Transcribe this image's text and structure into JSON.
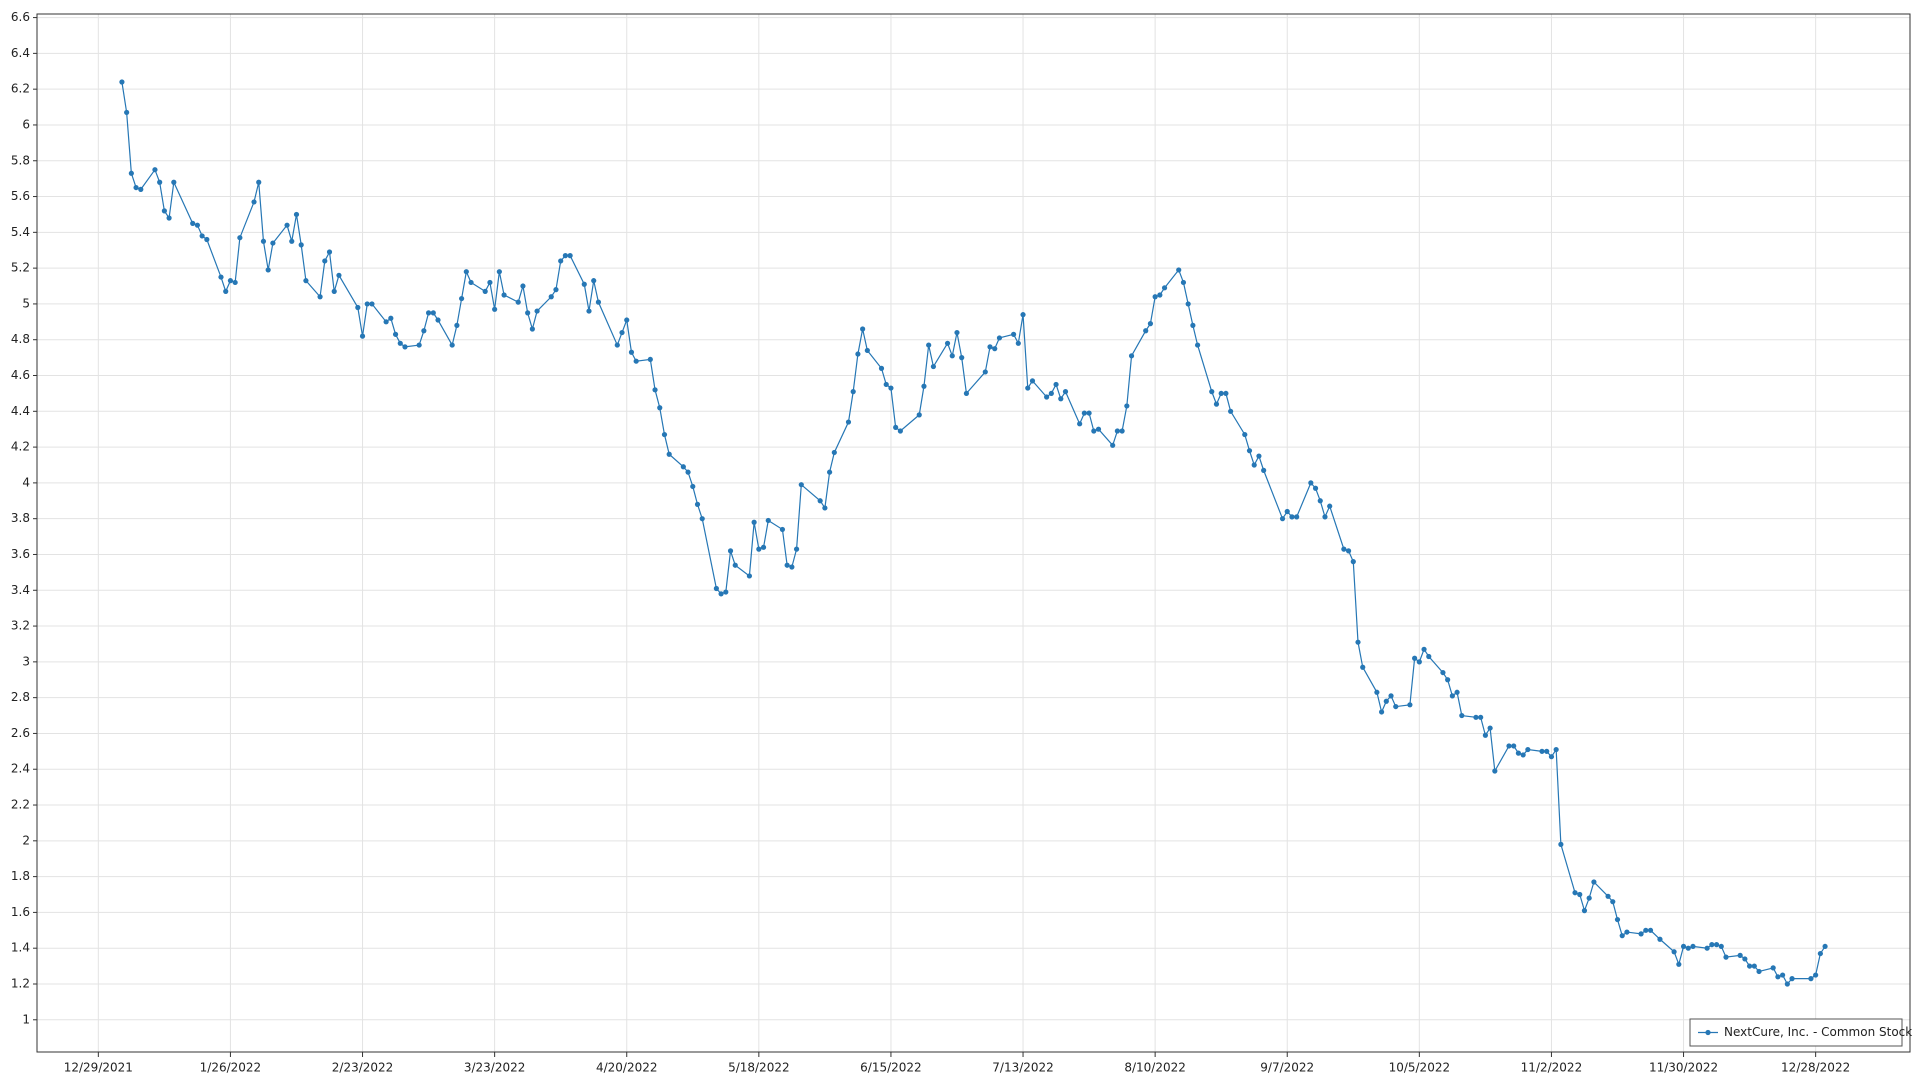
{
  "chart_data": {
    "type": "line",
    "x": [
      "1/3/2022",
      "1/4/2022",
      "1/5/2022",
      "1/6/2022",
      "1/7/2022",
      "1/10/2022",
      "1/11/2022",
      "1/12/2022",
      "1/13/2022",
      "1/14/2022",
      "1/18/2022",
      "1/19/2022",
      "1/20/2022",
      "1/21/2022",
      "1/24/2022",
      "1/25/2022",
      "1/26/2022",
      "1/27/2022",
      "1/28/2022",
      "1/31/2022",
      "2/1/2022",
      "2/2/2022",
      "2/3/2022",
      "2/4/2022",
      "2/7/2022",
      "2/8/2022",
      "2/9/2022",
      "2/10/2022",
      "2/11/2022",
      "2/14/2022",
      "2/15/2022",
      "2/16/2022",
      "2/17/2022",
      "2/18/2022",
      "2/22/2022",
      "2/23/2022",
      "2/24/2022",
      "2/25/2022",
      "2/28/2022",
      "3/1/2022",
      "3/2/2022",
      "3/3/2022",
      "3/4/2022",
      "3/7/2022",
      "3/8/2022",
      "3/9/2022",
      "3/10/2022",
      "3/11/2022",
      "3/14/2022",
      "3/15/2022",
      "3/16/2022",
      "3/17/2022",
      "3/18/2022",
      "3/21/2022",
      "3/22/2022",
      "3/23/2022",
      "3/24/2022",
      "3/25/2022",
      "3/28/2022",
      "3/29/2022",
      "3/30/2022",
      "3/31/2022",
      "4/1/2022",
      "4/4/2022",
      "4/5/2022",
      "4/6/2022",
      "4/7/2022",
      "4/8/2022",
      "4/11/2022",
      "4/12/2022",
      "4/13/2022",
      "4/14/2022",
      "4/18/2022",
      "4/19/2022",
      "4/20/2022",
      "4/21/2022",
      "4/22/2022",
      "4/25/2022",
      "4/26/2022",
      "4/27/2022",
      "4/28/2022",
      "4/29/2022",
      "5/2/2022",
      "5/3/2022",
      "5/4/2022",
      "5/5/2022",
      "5/6/2022",
      "5/9/2022",
      "5/10/2022",
      "5/11/2022",
      "5/12/2022",
      "5/13/2022",
      "5/16/2022",
      "5/17/2022",
      "5/18/2022",
      "5/19/2022",
      "5/20/2022",
      "5/23/2022",
      "5/24/2022",
      "5/25/2022",
      "5/26/2022",
      "5/27/2022",
      "5/31/2022",
      "6/1/2022",
      "6/2/2022",
      "6/3/2022",
      "6/6/2022",
      "6/7/2022",
      "6/8/2022",
      "6/9/2022",
      "6/10/2022",
      "6/13/2022",
      "6/14/2022",
      "6/15/2022",
      "6/16/2022",
      "6/17/2022",
      "6/21/2022",
      "6/22/2022",
      "6/23/2022",
      "6/24/2022",
      "6/27/2022",
      "6/28/2022",
      "6/29/2022",
      "6/30/2022",
      "7/1/2022",
      "7/5/2022",
      "7/6/2022",
      "7/7/2022",
      "7/8/2022",
      "7/11/2022",
      "7/12/2022",
      "7/13/2022",
      "7/14/2022",
      "7/15/2022",
      "7/18/2022",
      "7/19/2022",
      "7/20/2022",
      "7/21/2022",
      "7/22/2022",
      "7/25/2022",
      "7/26/2022",
      "7/27/2022",
      "7/28/2022",
      "7/29/2022",
      "8/1/2022",
      "8/2/2022",
      "8/3/2022",
      "8/4/2022",
      "8/5/2022",
      "8/8/2022",
      "8/9/2022",
      "8/10/2022",
      "8/11/2022",
      "8/12/2022",
      "8/15/2022",
      "8/16/2022",
      "8/17/2022",
      "8/18/2022",
      "8/19/2022",
      "8/22/2022",
      "8/23/2022",
      "8/24/2022",
      "8/25/2022",
      "8/26/2022",
      "8/29/2022",
      "8/30/2022",
      "8/31/2022",
      "9/1/2022",
      "9/2/2022",
      "9/6/2022",
      "9/7/2022",
      "9/8/2022",
      "9/9/2022",
      "9/12/2022",
      "9/13/2022",
      "9/14/2022",
      "9/15/2022",
      "9/16/2022",
      "9/19/2022",
      "9/20/2022",
      "9/21/2022",
      "9/22/2022",
      "9/23/2022",
      "9/26/2022",
      "9/27/2022",
      "9/28/2022",
      "9/29/2022",
      "9/30/2022",
      "10/3/2022",
      "10/4/2022",
      "10/5/2022",
      "10/6/2022",
      "10/7/2022",
      "10/10/2022",
      "10/11/2022",
      "10/12/2022",
      "10/13/2022",
      "10/14/2022",
      "10/17/2022",
      "10/18/2022",
      "10/19/2022",
      "10/20/2022",
      "10/21/2022",
      "10/24/2022",
      "10/25/2022",
      "10/26/2022",
      "10/27/2022",
      "10/28/2022",
      "10/31/2022",
      "11/1/2022",
      "11/2/2022",
      "11/3/2022",
      "11/4/2022",
      "11/7/2022",
      "11/8/2022",
      "11/9/2022",
      "11/10/2022",
      "11/11/2022",
      "11/14/2022",
      "11/15/2022",
      "11/16/2022",
      "11/17/2022",
      "11/18/2022",
      "11/21/2022",
      "11/22/2022",
      "11/23/2022",
      "11/25/2022",
      "11/28/2022",
      "11/29/2022",
      "11/30/2022",
      "12/1/2022",
      "12/2/2022",
      "12/5/2022",
      "12/6/2022",
      "12/7/2022",
      "12/8/2022",
      "12/9/2022",
      "12/12/2022",
      "12/13/2022",
      "12/14/2022",
      "12/15/2022",
      "12/16/2022",
      "12/19/2022",
      "12/20/2022",
      "12/21/2022",
      "12/22/2022",
      "12/23/2022",
      "12/27/2022",
      "12/28/2022",
      "12/29/2022",
      "12/30/2022"
    ],
    "series": [
      {
        "name": "NextCure, Inc. - Common Stock",
        "color": "#2677b5",
        "values": [
          6.24,
          6.07,
          5.73,
          5.65,
          5.64,
          5.75,
          5.68,
          5.52,
          5.48,
          5.68,
          5.45,
          5.44,
          5.38,
          5.36,
          5.15,
          5.07,
          5.13,
          5.12,
          5.37,
          5.57,
          5.68,
          5.35,
          5.19,
          5.34,
          5.44,
          5.35,
          5.5,
          5.33,
          5.13,
          5.04,
          5.24,
          5.29,
          5.07,
          5.16,
          4.98,
          4.82,
          5.0,
          5.0,
          4.9,
          4.92,
          4.83,
          4.78,
          4.76,
          4.77,
          4.85,
          4.95,
          4.95,
          4.91,
          4.77,
          4.88,
          5.03,
          5.18,
          5.12,
          5.07,
          5.12,
          4.97,
          5.18,
          5.05,
          5.01,
          5.1,
          4.95,
          4.86,
          4.96,
          5.04,
          5.08,
          5.24,
          5.27,
          5.27,
          5.11,
          4.96,
          5.13,
          5.01,
          4.77,
          4.84,
          4.91,
          4.73,
          4.68,
          4.69,
          4.52,
          4.42,
          4.27,
          4.16,
          4.09,
          4.06,
          3.98,
          3.88,
          3.8,
          3.41,
          3.38,
          3.39,
          3.62,
          3.54,
          3.48,
          3.78,
          3.63,
          3.64,
          3.79,
          3.74,
          3.54,
          3.53,
          3.63,
          3.99,
          3.9,
          3.86,
          4.06,
          4.17,
          4.34,
          4.51,
          4.72,
          4.86,
          4.74,
          4.64,
          4.55,
          4.53,
          4.31,
          4.29,
          4.38,
          4.54,
          4.77,
          4.65,
          4.78,
          4.71,
          4.84,
          4.7,
          4.5,
          4.62,
          4.76,
          4.75,
          4.81,
          4.83,
          4.78,
          4.94,
          4.53,
          4.57,
          4.48,
          4.5,
          4.55,
          4.47,
          4.51,
          4.33,
          4.39,
          4.39,
          4.29,
          4.3,
          4.21,
          4.29,
          4.29,
          4.43,
          4.71,
          4.85,
          4.89,
          5.04,
          5.05,
          5.09,
          5.19,
          5.12,
          5.0,
          4.88,
          4.77,
          4.51,
          4.44,
          4.5,
          4.5,
          4.4,
          4.27,
          4.18,
          4.1,
          4.15,
          4.07,
          3.8,
          3.84,
          3.81,
          3.81,
          4.0,
          3.97,
          3.9,
          3.81,
          3.87,
          3.63,
          3.62,
          3.56,
          3.11,
          2.97,
          2.83,
          2.72,
          2.78,
          2.81,
          2.75,
          2.76,
          3.02,
          3.0,
          3.07,
          3.03,
          2.94,
          2.9,
          2.81,
          2.83,
          2.7,
          2.69,
          2.69,
          2.59,
          2.63,
          2.39,
          2.53,
          2.53,
          2.49,
          2.48,
          2.51,
          2.5,
          2.5,
          2.47,
          2.51,
          1.98,
          1.71,
          1.7,
          1.61,
          1.68,
          1.77,
          1.69,
          1.66,
          1.56,
          1.47,
          1.49,
          1.48,
          1.5,
          1.5,
          1.45,
          1.38,
          1.31,
          1.41,
          1.4,
          1.41,
          1.4,
          1.42,
          1.42,
          1.41,
          1.35,
          1.36,
          1.34,
          1.3,
          1.3,
          1.27,
          1.29,
          1.24,
          1.25,
          1.2,
          1.23,
          1.23,
          1.25,
          1.37,
          1.41
        ]
      }
    ],
    "xlim": [
      "12/16/2021",
      "1/17/2023"
    ],
    "xticks": [
      "12/29/2021",
      "1/26/2022",
      "2/23/2022",
      "3/23/2022",
      "4/20/2022",
      "5/18/2022",
      "6/15/2022",
      "7/13/2022",
      "8/10/2022",
      "9/7/2022",
      "10/5/2022",
      "11/2/2022",
      "11/30/2022",
      "12/28/2022"
    ],
    "ylim": [
      0.82,
      6.62
    ],
    "yticks": [
      1,
      1.2,
      1.4,
      1.6,
      1.8,
      2,
      2.2,
      2.4,
      2.6,
      2.8,
      3,
      3.2,
      3.4,
      3.6,
      3.8,
      4,
      4.2,
      4.4,
      4.6,
      4.8,
      5,
      5.2,
      5.4,
      5.6,
      5.8,
      6,
      6.2,
      6.4,
      6.6
    ],
    "grid": true,
    "legend": "lower right"
  }
}
